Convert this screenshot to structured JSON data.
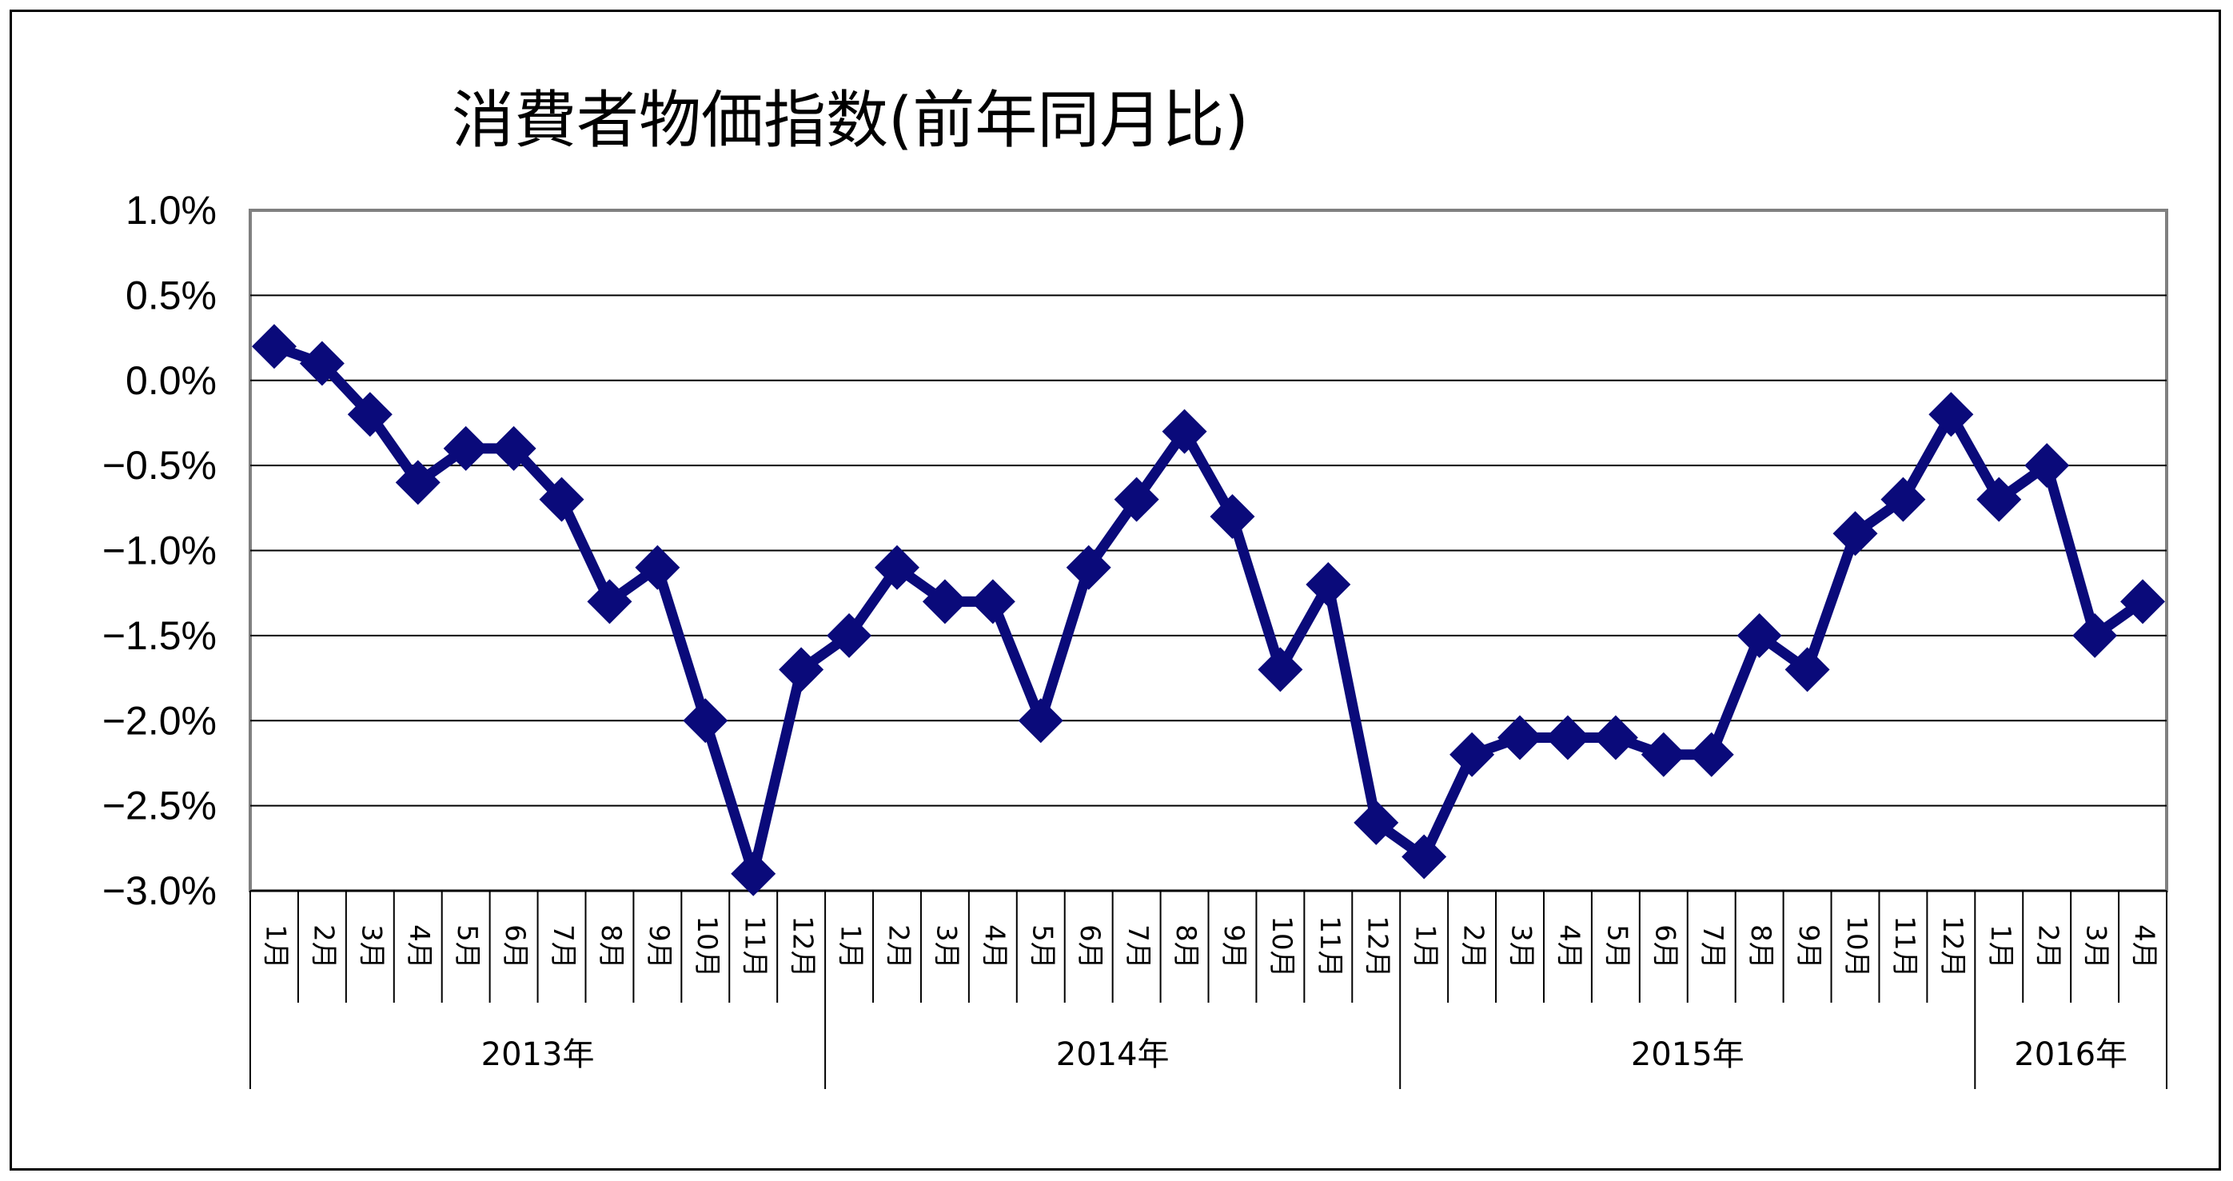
{
  "chart_data": {
    "type": "line",
    "title": "消費者物価指数(前年同月比)",
    "xlabel": "",
    "ylabel": "",
    "ylim": [
      -3.0,
      1.0
    ],
    "yticks": [
      {
        "value": 1.0,
        "label": "1.0%"
      },
      {
        "value": 0.5,
        "label": "0.5%"
      },
      {
        "value": 0.0,
        "label": "0.0%"
      },
      {
        "value": -0.5,
        "label": "−0.5%"
      },
      {
        "value": -1.0,
        "label": "−1.0%"
      },
      {
        "value": -1.5,
        "label": "−1.5%"
      },
      {
        "value": -2.0,
        "label": "−2.0%"
      },
      {
        "value": -2.5,
        "label": "−2.5%"
      },
      {
        "value": -3.0,
        "label": "−3.0%"
      }
    ],
    "grid": true,
    "legend": "none",
    "series_color": "#0a0a7a",
    "years": [
      {
        "label": "2013年",
        "months": 12
      },
      {
        "label": "2014年",
        "months": 12
      },
      {
        "label": "2015年",
        "months": 12
      },
      {
        "label": "2016年",
        "months": 4
      }
    ],
    "categories": [
      "1月",
      "2月",
      "3月",
      "4月",
      "5月",
      "6月",
      "7月",
      "8月",
      "9月",
      "10月",
      "11月",
      "12月",
      "1月",
      "2月",
      "3月",
      "4月",
      "5月",
      "6月",
      "7月",
      "8月",
      "9月",
      "10月",
      "11月",
      "12月",
      "1月",
      "2月",
      "3月",
      "4月",
      "5月",
      "6月",
      "7月",
      "8月",
      "9月",
      "10月",
      "11月",
      "12月",
      "1月",
      "2月",
      "3月",
      "4月"
    ],
    "series": [
      {
        "values": [
          0.2,
          0.1,
          -0.2,
          -0.6,
          -0.4,
          -0.4,
          -0.7,
          -1.3,
          -1.1,
          -2.0,
          -2.9,
          -1.7,
          -1.5,
          -1.1,
          -1.3,
          -1.3,
          -2.0,
          -1.1,
          -0.7,
          -0.3,
          -0.8,
          -1.7,
          -1.2,
          -2.6,
          -2.8,
          -2.2,
          -2.1,
          -2.1,
          -2.1,
          -2.2,
          -2.2,
          -1.5,
          -1.7,
          -0.9,
          -0.7,
          -0.2,
          -0.7,
          -0.5,
          -1.5,
          -1.3
        ]
      }
    ]
  }
}
